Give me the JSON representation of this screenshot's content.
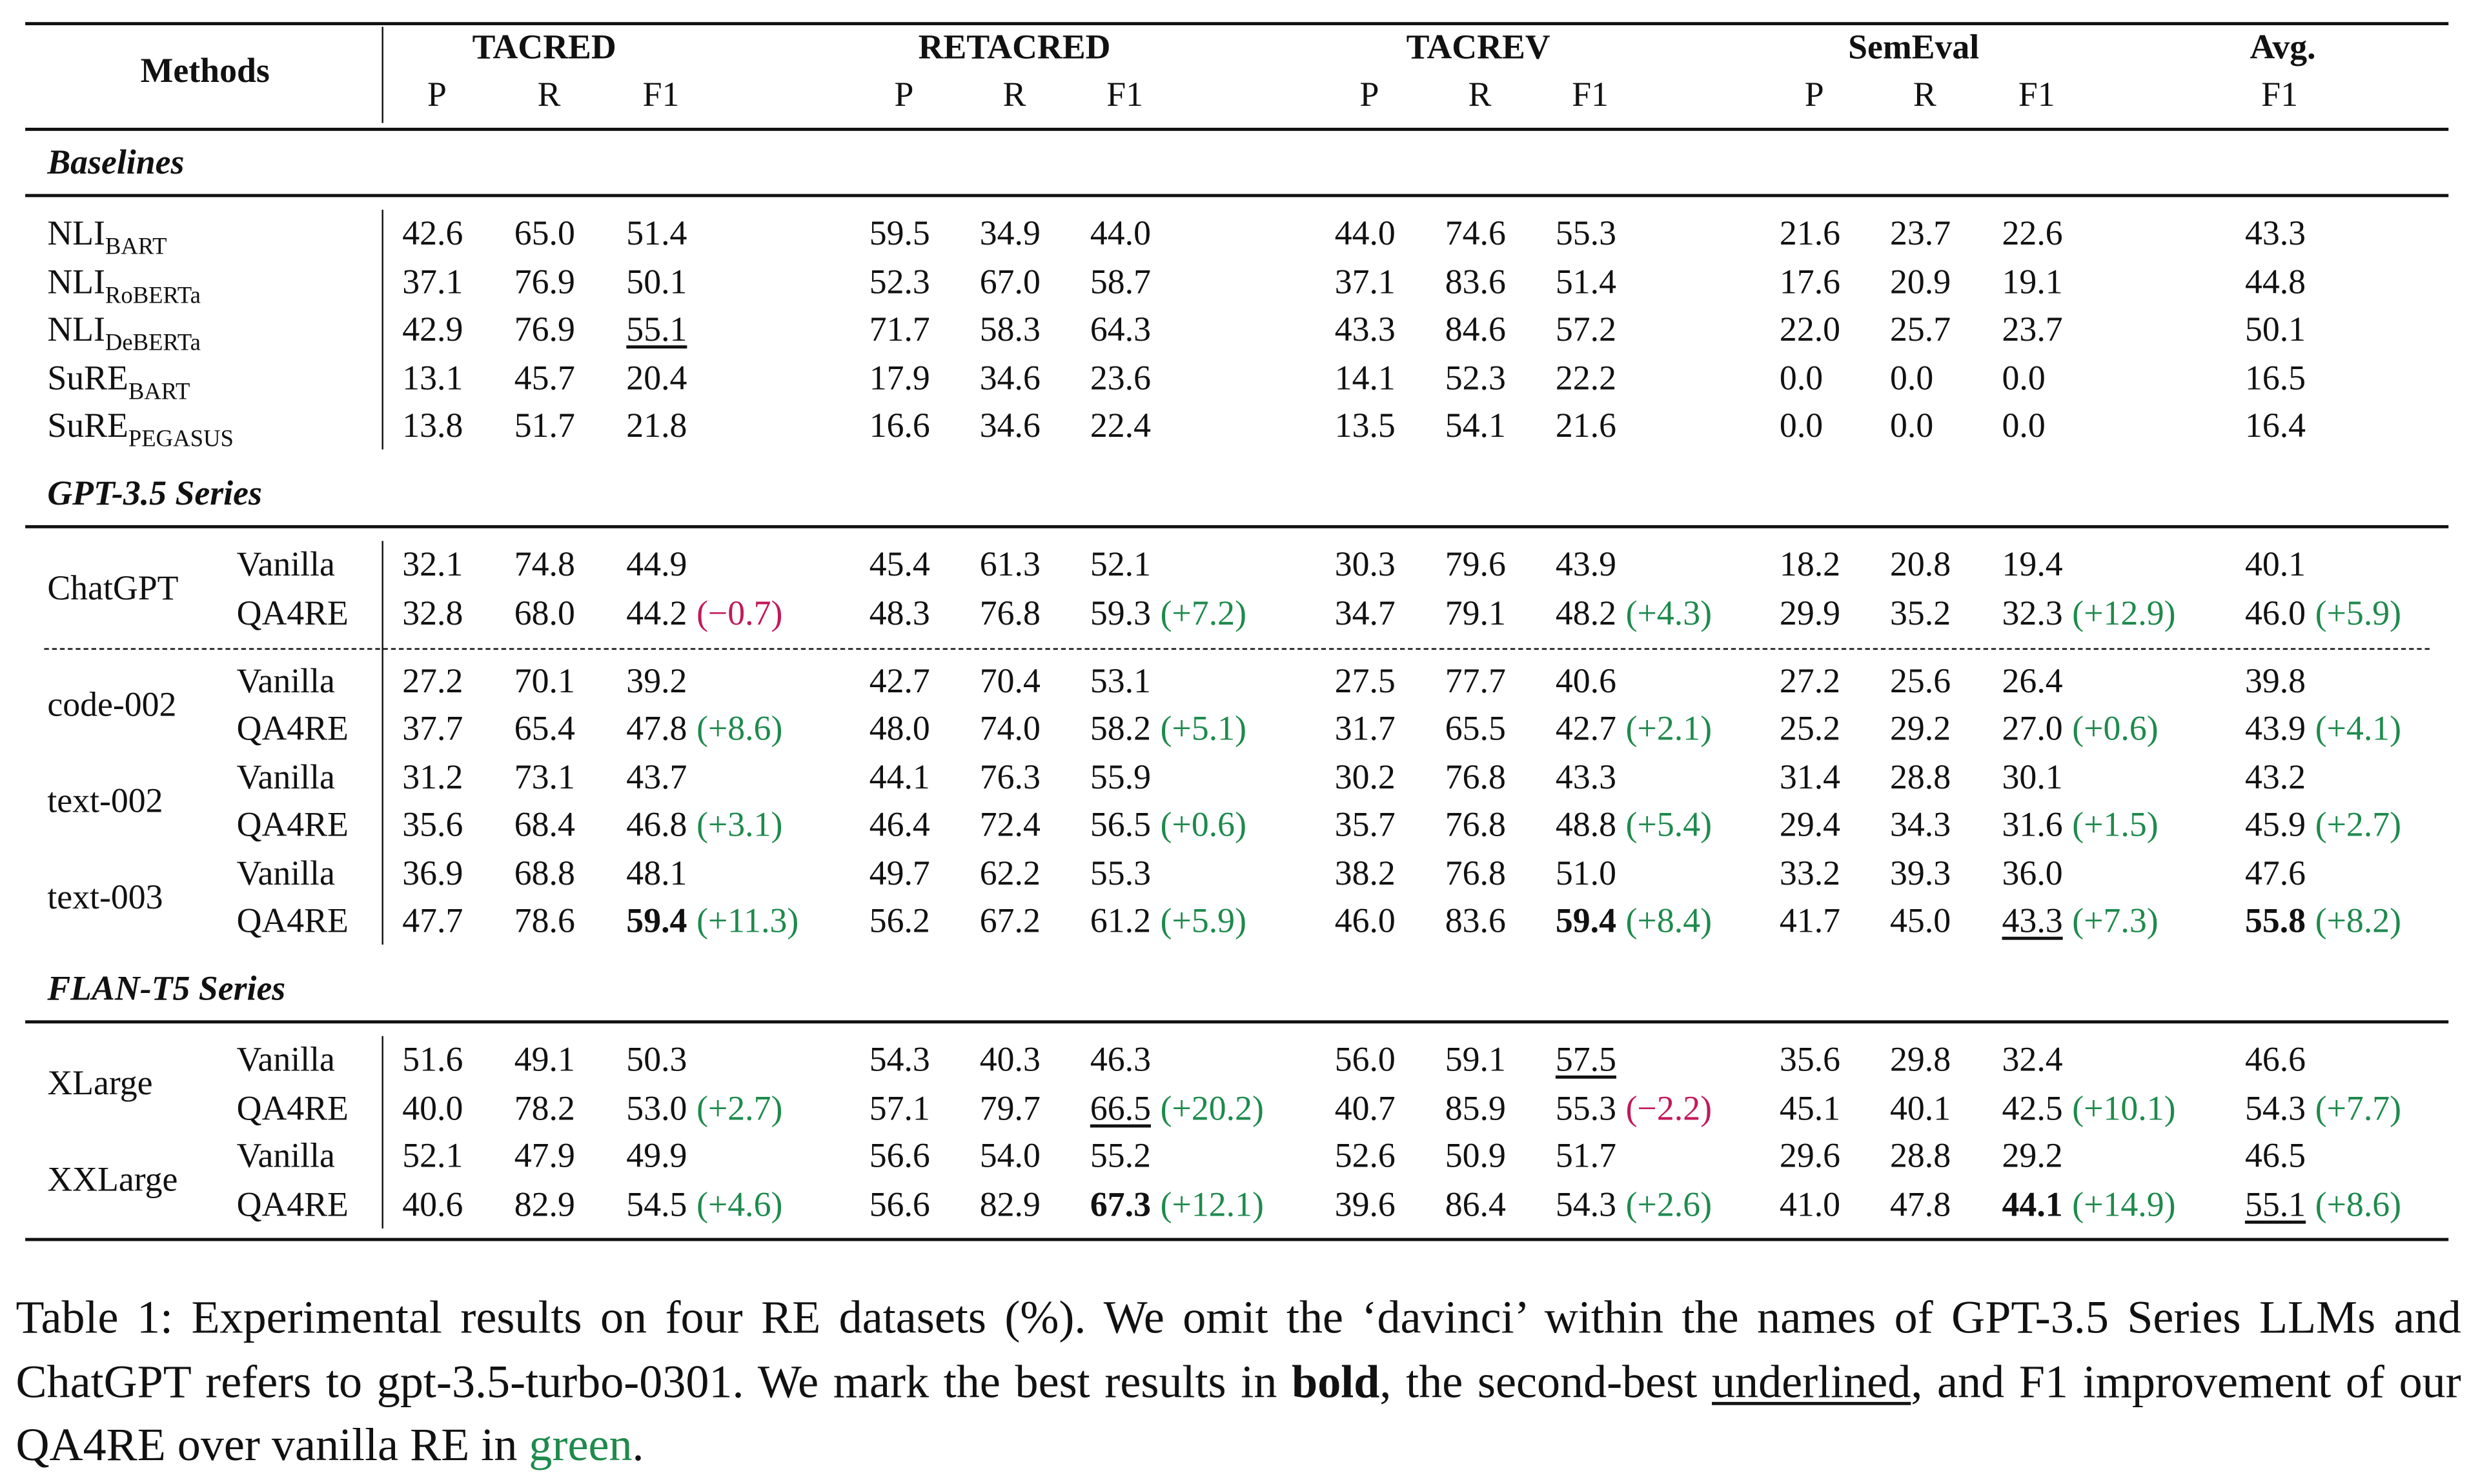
{
  "table": {
    "header": {
      "methods": "Methods",
      "datasets": [
        "TACRED",
        "RETACRED",
        "TACREV",
        "SemEval",
        "Avg."
      ],
      "metrics": [
        "P",
        "R",
        "F1"
      ],
      "avg_metric": "F1"
    },
    "sections": [
      {
        "title": "Baselines",
        "rows": [
          {
            "method": {
              "name": "NLI",
              "sub": "BART"
            },
            "cells": [
              "42.6",
              "65.0",
              "51.4",
              "59.5",
              "34.9",
              "44.0",
              "44.0",
              "74.6",
              "55.3",
              "21.6",
              "23.7",
              "22.6",
              "43.3"
            ]
          },
          {
            "method": {
              "name": "NLI",
              "sub": "RoBERTa"
            },
            "cells": [
              "37.1",
              "76.9",
              "50.1",
              "52.3",
              "67.0",
              "58.7",
              "37.1",
              "83.6",
              "51.4",
              "17.6",
              "20.9",
              "19.1",
              "44.8"
            ]
          },
          {
            "method": {
              "name": "NLI",
              "sub": "DeBERTa"
            },
            "cells": [
              "42.9",
              "76.9",
              {
                "text": "55.1",
                "style": "underline"
              },
              "71.7",
              "58.3",
              "64.3",
              "43.3",
              "84.6",
              "57.2",
              "22.0",
              "25.7",
              "23.7",
              "50.1"
            ]
          },
          {
            "method": {
              "name": "SuRE",
              "sub": "BART"
            },
            "cells": [
              "13.1",
              "45.7",
              "20.4",
              "17.9",
              "34.6",
              "23.6",
              "14.1",
              "52.3",
              "22.2",
              "0.0",
              "0.0",
              "0.0",
              "16.5"
            ]
          },
          {
            "method": {
              "name": "SuRE",
              "sub": "PEGASUS"
            },
            "cells": [
              "13.8",
              "51.7",
              "21.8",
              "16.6",
              "34.6",
              "22.4",
              "13.5",
              "54.1",
              "21.6",
              "0.0",
              "0.0",
              "0.0",
              "16.4"
            ]
          }
        ]
      },
      {
        "title": "GPT-3.5 Series",
        "groups": [
          {
            "name": "ChatGPT",
            "divider": "dashed",
            "rows": [
              {
                "variant": "Vanilla",
                "cells": [
                  "32.1",
                  "74.8",
                  "44.9",
                  "45.4",
                  "61.3",
                  "52.1",
                  "30.3",
                  "79.6",
                  "43.9",
                  "18.2",
                  "20.8",
                  "19.4",
                  "40.1"
                ]
              },
              {
                "variant": "QA4RE",
                "cells": [
                  "32.8",
                  "68.0",
                  {
                    "text": "44.2",
                    "delta": {
                      "text": "(−0.7)",
                      "color": "#c2185b"
                    }
                  },
                  "48.3",
                  "76.8",
                  {
                    "text": "59.3",
                    "delta": {
                      "text": "(+7.2)",
                      "color": "#1e8a4c"
                    }
                  },
                  "34.7",
                  "79.1",
                  {
                    "text": "48.2",
                    "delta": {
                      "text": "(+4.3)",
                      "color": "#1e8a4c"
                    }
                  },
                  "29.9",
                  "35.2",
                  {
                    "text": "32.3",
                    "delta": {
                      "text": "(+12.9)",
                      "color": "#1e8a4c"
                    }
                  },
                  {
                    "text": "46.0",
                    "delta": {
                      "text": "(+5.9)",
                      "color": "#1e8a4c"
                    }
                  }
                ]
              }
            ]
          },
          {
            "name": "code-002",
            "rows": [
              {
                "variant": "Vanilla",
                "cells": [
                  "27.2",
                  "70.1",
                  "39.2",
                  "42.7",
                  "70.4",
                  "53.1",
                  "27.5",
                  "77.7",
                  "40.6",
                  "27.2",
                  "25.6",
                  "26.4",
                  "39.8"
                ]
              },
              {
                "variant": "QA4RE",
                "cells": [
                  "37.7",
                  "65.4",
                  {
                    "text": "47.8",
                    "delta": {
                      "text": "(+8.6)",
                      "color": "#1e8a4c"
                    }
                  },
                  "48.0",
                  "74.0",
                  {
                    "text": "58.2",
                    "delta": {
                      "text": "(+5.1)",
                      "color": "#1e8a4c"
                    }
                  },
                  "31.7",
                  "65.5",
                  {
                    "text": "42.7",
                    "delta": {
                      "text": "(+2.1)",
                      "color": "#1e8a4c"
                    }
                  },
                  "25.2",
                  "29.2",
                  {
                    "text": "27.0",
                    "delta": {
                      "text": "(+0.6)",
                      "color": "#1e8a4c"
                    }
                  },
                  {
                    "text": "43.9",
                    "delta": {
                      "text": "(+4.1)",
                      "color": "#1e8a4c"
                    }
                  }
                ]
              }
            ]
          },
          {
            "name": "text-002",
            "rows": [
              {
                "variant": "Vanilla",
                "cells": [
                  "31.2",
                  "73.1",
                  "43.7",
                  "44.1",
                  "76.3",
                  "55.9",
                  "30.2",
                  "76.8",
                  "43.3",
                  "31.4",
                  "28.8",
                  "30.1",
                  "43.2"
                ]
              },
              {
                "variant": "QA4RE",
                "cells": [
                  "35.6",
                  "68.4",
                  {
                    "text": "46.8",
                    "delta": {
                      "text": "(+3.1)",
                      "color": "#1e8a4c"
                    }
                  },
                  "46.4",
                  "72.4",
                  {
                    "text": "56.5",
                    "delta": {
                      "text": "(+0.6)",
                      "color": "#1e8a4c"
                    }
                  },
                  "35.7",
                  "76.8",
                  {
                    "text": "48.8",
                    "delta": {
                      "text": "(+5.4)",
                      "color": "#1e8a4c"
                    }
                  },
                  "29.4",
                  "34.3",
                  {
                    "text": "31.6",
                    "delta": {
                      "text": "(+1.5)",
                      "color": "#1e8a4c"
                    }
                  },
                  {
                    "text": "45.9",
                    "delta": {
                      "text": "(+2.7)",
                      "color": "#1e8a4c"
                    }
                  }
                ]
              }
            ]
          },
          {
            "name": "text-003",
            "rows": [
              {
                "variant": "Vanilla",
                "cells": [
                  "36.9",
                  "68.8",
                  "48.1",
                  "49.7",
                  "62.2",
                  "55.3",
                  "38.2",
                  "76.8",
                  "51.0",
                  "33.2",
                  "39.3",
                  "36.0",
                  "47.6"
                ]
              },
              {
                "variant": "QA4RE",
                "cells": [
                  "47.7",
                  "78.6",
                  {
                    "text": "59.4",
                    "style": "bold",
                    "delta": {
                      "text": "(+11.3)",
                      "color": "#1e8a4c"
                    }
                  },
                  "56.2",
                  "67.2",
                  {
                    "text": "61.2",
                    "delta": {
                      "text": "(+5.9)",
                      "color": "#1e8a4c"
                    }
                  },
                  "46.0",
                  "83.6",
                  {
                    "text": "59.4",
                    "style": "bold",
                    "delta": {
                      "text": "(+8.4)",
                      "color": "#1e8a4c"
                    }
                  },
                  "41.7",
                  "45.0",
                  {
                    "text": "43.3",
                    "style": "underline",
                    "delta": {
                      "text": "(+7.3)",
                      "color": "#1e8a4c"
                    }
                  },
                  {
                    "text": "55.8",
                    "style": "bold",
                    "delta": {
                      "text": "(+8.2)",
                      "color": "#1e8a4c"
                    }
                  }
                ]
              }
            ]
          }
        ]
      },
      {
        "title": "FLAN-T5 Series",
        "groups": [
          {
            "name": "XLarge",
            "rows": [
              {
                "variant": "Vanilla",
                "cells": [
                  "51.6",
                  "49.1",
                  "50.3",
                  "54.3",
                  "40.3",
                  "46.3",
                  "56.0",
                  "59.1",
                  {
                    "text": "57.5",
                    "style": "underline"
                  },
                  "35.6",
                  "29.8",
                  "32.4",
                  "46.6"
                ]
              },
              {
                "variant": "QA4RE",
                "cells": [
                  "40.0",
                  "78.2",
                  {
                    "text": "53.0",
                    "delta": {
                      "text": "(+2.7)",
                      "color": "#1e8a4c"
                    }
                  },
                  "57.1",
                  "79.7",
                  {
                    "text": "66.5",
                    "style": "underline",
                    "delta": {
                      "text": "(+20.2)",
                      "color": "#1e8a4c"
                    }
                  },
                  "40.7",
                  "85.9",
                  {
                    "text": "55.3",
                    "delta": {
                      "text": "(−2.2)",
                      "color": "#c2185b"
                    }
                  },
                  "45.1",
                  "40.1",
                  {
                    "text": "42.5",
                    "delta": {
                      "text": "(+10.1)",
                      "color": "#1e8a4c"
                    }
                  },
                  {
                    "text": "54.3",
                    "delta": {
                      "text": "(+7.7)",
                      "color": "#1e8a4c"
                    }
                  }
                ]
              }
            ]
          },
          {
            "name": "XXLarge",
            "rows": [
              {
                "variant": "Vanilla",
                "cells": [
                  "52.1",
                  "47.9",
                  "49.9",
                  "56.6",
                  "54.0",
                  "55.2",
                  "52.6",
                  "50.9",
                  "51.7",
                  "29.6",
                  "28.8",
                  "29.2",
                  "46.5"
                ]
              },
              {
                "variant": "QA4RE",
                "cells": [
                  "40.6",
                  "82.9",
                  {
                    "text": "54.5",
                    "delta": {
                      "text": "(+4.6)",
                      "color": "#1e8a4c"
                    }
                  },
                  "56.6",
                  "82.9",
                  {
                    "text": "67.3",
                    "style": "bold",
                    "delta": {
                      "text": "(+12.1)",
                      "color": "#1e8a4c"
                    }
                  },
                  "39.6",
                  "86.4",
                  {
                    "text": "54.3",
                    "delta": {
                      "text": "(+2.6)",
                      "color": "#1e8a4c"
                    }
                  },
                  "41.0",
                  "47.8",
                  {
                    "text": "44.1",
                    "style": "bold",
                    "delta": {
                      "text": "(+14.9)",
                      "color": "#1e8a4c"
                    }
                  },
                  {
                    "text": "55.1",
                    "style": "underline",
                    "delta": {
                      "text": "(+8.6)",
                      "color": "#1e8a4c"
                    }
                  }
                ]
              }
            ]
          }
        ]
      }
    ],
    "caption": [
      {
        "text": "Table 1: Experimental results on four RE datasets (%). We omit the ‘davinci’ within the names of GPT-3.5 Series LLMs and ChatGPT refers to gpt-3.5-turbo-0301. We mark the best results in "
      },
      {
        "text": "bold",
        "style": "bold"
      },
      {
        "text": ", the second-best "
      },
      {
        "text": "underlined",
        "style": "underline"
      },
      {
        "text": ", and F1 improvement of our QA4RE over vanilla RE in "
      },
      {
        "text": "green",
        "color": "#1e8a4c"
      },
      {
        "text": "."
      }
    ]
  }
}
